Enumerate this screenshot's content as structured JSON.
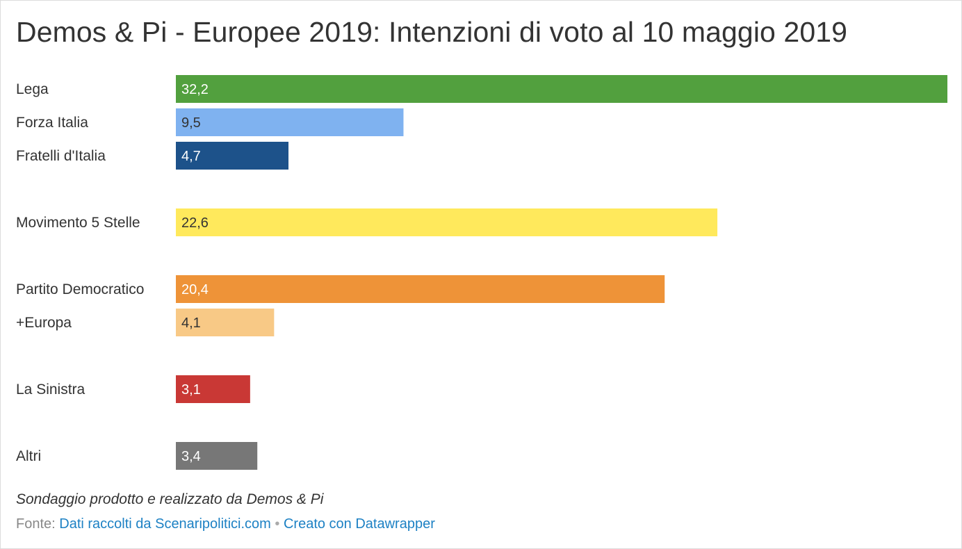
{
  "title": "Demos & Pi - Europee 2019: Intenzioni di voto al 10 maggio 2019",
  "notes": "Sondaggio prodotto e realizzato da Demos & Pi",
  "footer": {
    "source_prefix": "Fonte:",
    "source_link": "Dati raccolti da Scenaripolitici.com",
    "separator": "•",
    "created_with": "Creato con Datawrapper"
  },
  "chart_data": {
    "type": "bar",
    "orientation": "horizontal",
    "title": "Demos & Pi - Europee 2019: Intenzioni di voto al 10 maggio 2019",
    "xlim": [
      0,
      32.2
    ],
    "grid": false,
    "groups": [
      [
        "Lega",
        "Forza Italia",
        "Fratelli d'Italia"
      ],
      [
        "Movimento 5 Stelle"
      ],
      [
        "Partito Democratico",
        "+Europa"
      ],
      [
        "La Sinistra"
      ],
      [
        "Altri"
      ]
    ],
    "categories": [
      "Lega",
      "Forza Italia",
      "Fratelli d'Italia",
      "Movimento 5 Stelle",
      "Partito Democratico",
      "+Europa",
      "La Sinistra",
      "Altri"
    ],
    "values": [
      32.2,
      9.5,
      4.7,
      22.6,
      20.4,
      4.1,
      3.1,
      3.4
    ],
    "value_labels": [
      "32,2",
      "9,5",
      "4,7",
      "22,6",
      "20,4",
      "4,1",
      "3,1",
      "3,4"
    ],
    "colors": [
      "#52a03e",
      "#7fb2f0",
      "#1d528a",
      "#ffe95c",
      "#ee9338",
      "#f8c986",
      "#c93835",
      "#777777"
    ],
    "label_colors": [
      "#ffffff",
      "#333333",
      "#ffffff",
      "#333333",
      "#ffffff",
      "#333333",
      "#ffffff",
      "#ffffff"
    ]
  }
}
